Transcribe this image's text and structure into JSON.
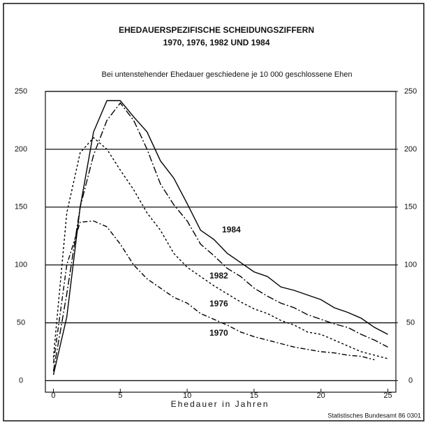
{
  "chart_data": {
    "type": "line",
    "title": "EHEDAUERSPEZIFISCHE SCHEIDUNGSZIFFERN",
    "subtitle": "1970, 1976, 1982 UND 1984",
    "y_label": "Bei untenstehender Ehedauer geschiedene je 10 000 geschlossene Ehen",
    "x_label": "Ehedauer in Jahren",
    "source": "Statistisches Bundesamt 86 0301",
    "x": [
      0,
      1,
      2,
      3,
      4,
      5,
      6,
      7,
      8,
      9,
      10,
      11,
      12,
      13,
      14,
      15,
      16,
      17,
      18,
      19,
      20,
      21,
      22,
      23,
      24,
      25
    ],
    "series": [
      {
        "name": "1984",
        "color": "#000000",
        "dash": "none",
        "values": [
          5,
          55,
          150,
          215,
          242,
          242,
          228,
          215,
          190,
          175,
          153,
          130,
          122,
          110,
          102,
          94,
          90,
          81,
          78,
          74,
          70,
          63,
          59,
          54,
          46,
          40
        ]
      },
      {
        "name": "1982",
        "color": "#000000",
        "dash": "10 3 2 3",
        "values": [
          8,
          75,
          150,
          195,
          225,
          240,
          225,
          200,
          170,
          152,
          138,
          118,
          108,
          97,
          90,
          80,
          73,
          67,
          63,
          57,
          53,
          49,
          46,
          40,
          35,
          29
        ]
      },
      {
        "name": "1976",
        "color": "#000000",
        "dash": "3 3",
        "values": [
          20,
          145,
          197,
          210,
          200,
          182,
          165,
          145,
          130,
          110,
          98,
          90,
          82,
          75,
          68,
          62,
          58,
          52,
          48,
          42,
          40,
          35,
          30,
          25,
          22,
          19
        ]
      },
      {
        "name": "1970",
        "color": "#000000",
        "dash": "7 3 2 3",
        "values": [
          15,
          100,
          137,
          138,
          133,
          118,
          100,
          88,
          80,
          72,
          67,
          58,
          53,
          48,
          42,
          38,
          35,
          32,
          29,
          27,
          25,
          24,
          22,
          21,
          18,
          null
        ]
      }
    ],
    "xlim": [
      -0.6,
      25.6
    ],
    "xticks": [
      0,
      5,
      10,
      15,
      20,
      25
    ],
    "ylim": [
      -10,
      250
    ],
    "yticks": [
      0,
      50,
      100,
      150,
      200,
      250
    ],
    "y2lim": [
      -10,
      250
    ],
    "y2ticks": [
      0,
      50,
      100,
      150,
      200,
      250
    ],
    "grid": true
  }
}
